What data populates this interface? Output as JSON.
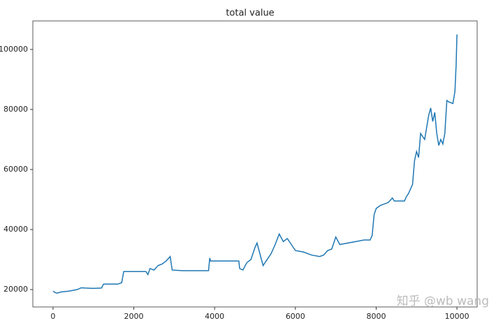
{
  "chart_data": {
    "type": "line",
    "title": "total value",
    "x": [
      0,
      50,
      100,
      200,
      400,
      600,
      700,
      800,
      1000,
      1200,
      1250,
      1600,
      1700,
      1750,
      2300,
      2350,
      2400,
      2500,
      2600,
      2700,
      2800,
      2900,
      2950,
      3200,
      3850,
      3880,
      3900,
      4600,
      4620,
      4700,
      4800,
      4900,
      5000,
      5050,
      5100,
      5200,
      5300,
      5400,
      5500,
      5600,
      5700,
      5800,
      5900,
      6000,
      6200,
      6400,
      6600,
      6700,
      6800,
      6900,
      7000,
      7100,
      7300,
      7500,
      7700,
      7850,
      7900,
      7950,
      8000,
      8100,
      8200,
      8300,
      8400,
      8450,
      8700,
      8750,
      8800,
      8900,
      8950,
      9000,
      9050,
      9100,
      9200,
      9300,
      9350,
      9400,
      9450,
      9500,
      9550,
      9600,
      9650,
      9700,
      9750,
      9800,
      9900,
      9950,
      9980,
      10000
    ],
    "series": [
      {
        "color": "#1f77b4",
        "values": [
          19500,
          19000,
          18800,
          19200,
          19500,
          20000,
          20600,
          20500,
          20400,
          20500,
          21800,
          21800,
          22300,
          26000,
          26000,
          25000,
          27000,
          26500,
          28000,
          28500,
          29500,
          31000,
          26500,
          26300,
          26300,
          30500,
          29500,
          29500,
          27000,
          26500,
          29000,
          30000,
          34000,
          35500,
          33000,
          28000,
          30000,
          32000,
          35000,
          38500,
          36000,
          37000,
          35000,
          33000,
          32500,
          31500,
          31000,
          31500,
          33000,
          33500,
          37500,
          35000,
          35500,
          36000,
          36500,
          36500,
          38000,
          45000,
          47000,
          48000,
          48500,
          49000,
          50500,
          49500,
          49500,
          51000,
          52000,
          55000,
          63000,
          66000,
          64000,
          72000,
          70000,
          78000,
          80500,
          76000,
          79000,
          72000,
          68000,
          70000,
          68500,
          72000,
          83000,
          82500,
          82000,
          86000,
          95000,
          105000
        ]
      }
    ],
    "xlim": [
      -500,
      10500
    ],
    "ylim": [
      14200,
      109500
    ],
    "xticks": [
      0,
      2000,
      4000,
      6000,
      8000,
      10000
    ],
    "yticks": [
      20000,
      40000,
      60000,
      80000,
      100000
    ],
    "watermark": "知乎 @wb wang"
  }
}
